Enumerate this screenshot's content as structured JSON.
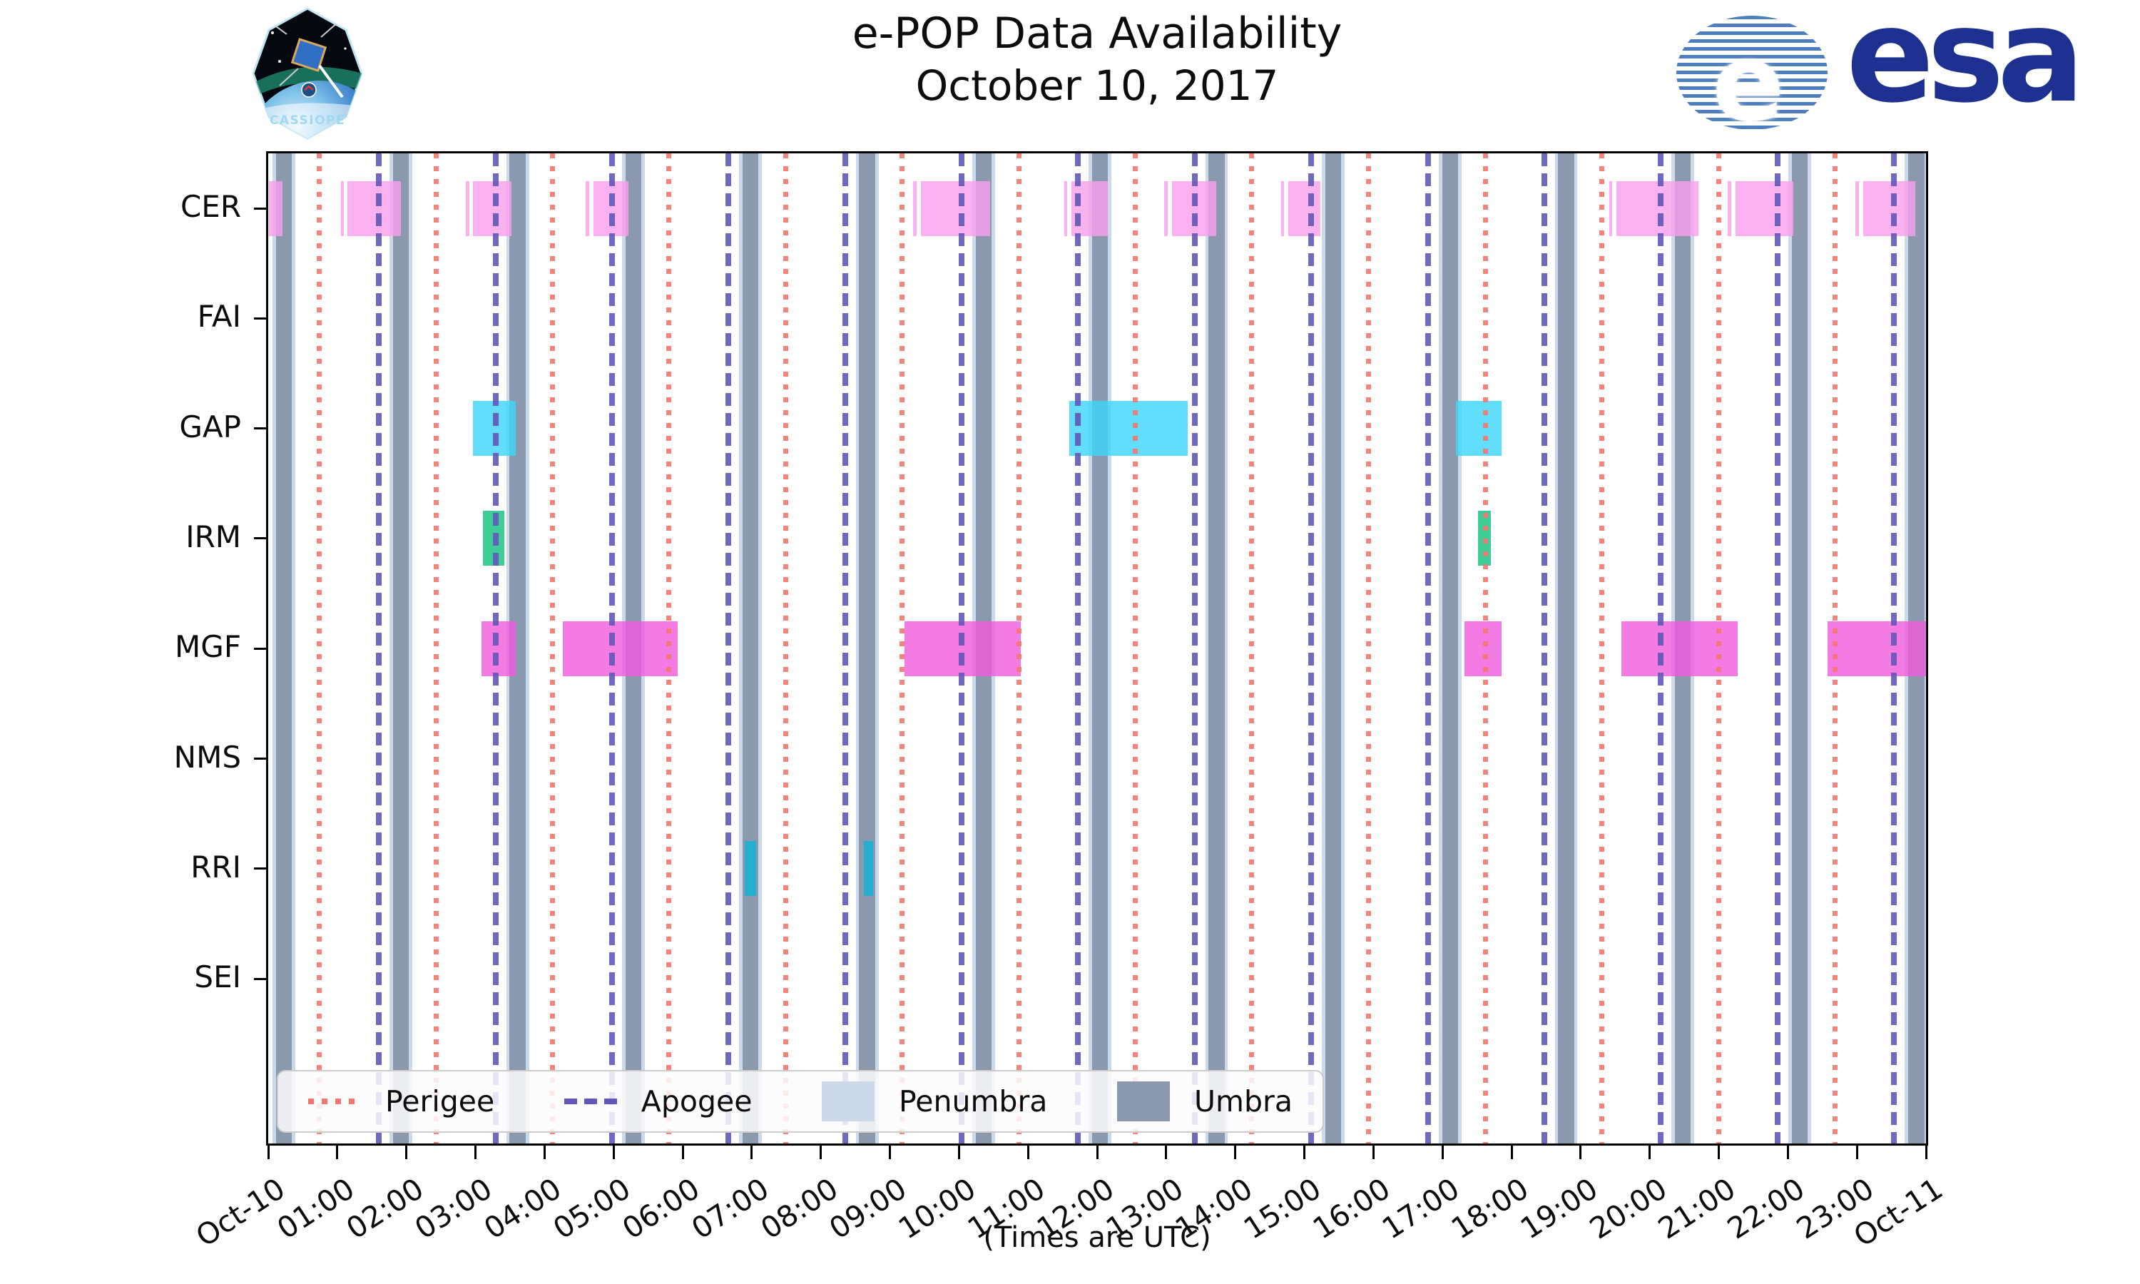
{
  "header": {
    "title_line1": "e-POP Data Availability",
    "title_line2": "October 10, 2017",
    "cassiope_label": "CASSIOPE",
    "esa_wordmark": "esa",
    "esa_globe_letter": "e"
  },
  "chart_data": {
    "type": "timeline",
    "title": "e-POP Data Availability",
    "subtitle": "October 10, 2017",
    "xlabel": "(Times are UTC)",
    "x_range_hours": [
      0,
      24
    ],
    "x_tick_labels": [
      "Oct-10",
      "01:00",
      "02:00",
      "03:00",
      "04:00",
      "05:00",
      "06:00",
      "07:00",
      "08:00",
      "09:00",
      "10:00",
      "11:00",
      "12:00",
      "13:00",
      "14:00",
      "15:00",
      "16:00",
      "17:00",
      "18:00",
      "19:00",
      "20:00",
      "21:00",
      "22:00",
      "23:00",
      "Oct-11"
    ],
    "instruments": [
      "CER",
      "FAI",
      "GAP",
      "IRM",
      "MGF",
      "NMS",
      "RRI",
      "SEI"
    ],
    "orbit_events": {
      "perigee_hours": [
        0.74,
        2.43,
        4.12,
        5.8,
        7.49,
        9.18,
        10.87,
        12.55,
        14.24,
        15.93,
        17.62,
        19.31,
        21.0,
        22.68
      ],
      "apogee_hours": [
        1.6,
        3.29,
        4.98,
        6.66,
        8.35,
        10.04,
        11.72,
        13.41,
        15.1,
        16.79,
        18.48,
        20.16,
        21.85,
        23.54
      ],
      "umbra_center_hours": [
        0.23,
        1.92,
        3.61,
        5.29,
        6.98,
        8.67,
        10.36,
        12.04,
        13.73,
        15.42,
        17.11,
        18.79,
        20.48,
        22.17,
        23.86
      ],
      "umbra_halfwidth_hours": 0.115,
      "penumbra_extra_hours": 0.05
    },
    "availability_bars_hours": {
      "CER": [
        [
          0.01,
          0.21
        ],
        [
          1.05,
          1.09
        ],
        [
          1.15,
          1.92
        ],
        [
          2.86,
          2.91
        ],
        [
          2.96,
          3.52
        ],
        [
          4.6,
          4.65
        ],
        [
          4.71,
          5.22
        ],
        [
          9.34,
          9.39
        ],
        [
          9.45,
          10.45
        ],
        [
          11.52,
          11.57
        ],
        [
          11.63,
          12.16
        ],
        [
          12.97,
          13.02
        ],
        [
          13.08,
          13.72
        ],
        [
          14.66,
          14.71
        ],
        [
          14.77,
          15.23
        ],
        [
          19.41,
          19.46
        ],
        [
          19.52,
          20.71
        ],
        [
          21.13,
          21.18
        ],
        [
          21.24,
          22.08
        ],
        [
          22.98,
          23.03
        ],
        [
          23.09,
          23.84
        ]
      ],
      "FAI": [],
      "GAP": [
        [
          2.96,
          3.58
        ],
        [
          11.6,
          13.31
        ],
        [
          17.19,
          17.86
        ]
      ],
      "IRM": [
        [
          3.11,
          3.42
        ],
        [
          17.51,
          17.7
        ]
      ],
      "MGF": [
        [
          3.09,
          3.58
        ],
        [
          4.26,
          5.93
        ],
        [
          9.21,
          10.89
        ],
        [
          17.32,
          17.86
        ],
        [
          19.59,
          21.27
        ],
        [
          22.58,
          24.0
        ]
      ],
      "NMS": [],
      "RRI": [
        [
          6.9,
          7.06
        ],
        [
          8.62,
          8.76
        ]
      ],
      "SEI": []
    },
    "colors": {
      "CER": "rgb(250,158,236)",
      "FAI": "rgb(250,158,236)",
      "GAP": "rgb(60,214,249)",
      "IRM": "rgb(15,193,125)",
      "MGF": "rgb(239,90,221)",
      "NMS": "rgb(239,90,221)",
      "RRI": "rgb(10,180,215)",
      "SEI": "rgb(10,180,215)",
      "perigee": "#f4766e",
      "apogee": "#6157b8",
      "umbra": "#8a99ad",
      "penumbra": "#ccd9e8",
      "axis": "#000000",
      "esa_navy": "#1e3191",
      "esa_globe_blue": "#4d7ec0"
    },
    "legend": [
      {
        "label": "Perigee",
        "kind": "dotted-line"
      },
      {
        "label": "Apogee",
        "kind": "dashed-line"
      },
      {
        "label": "Penumbra",
        "kind": "patch"
      },
      {
        "label": "Umbra",
        "kind": "patch"
      }
    ],
    "legend_position": "lower left",
    "grid": false
  }
}
